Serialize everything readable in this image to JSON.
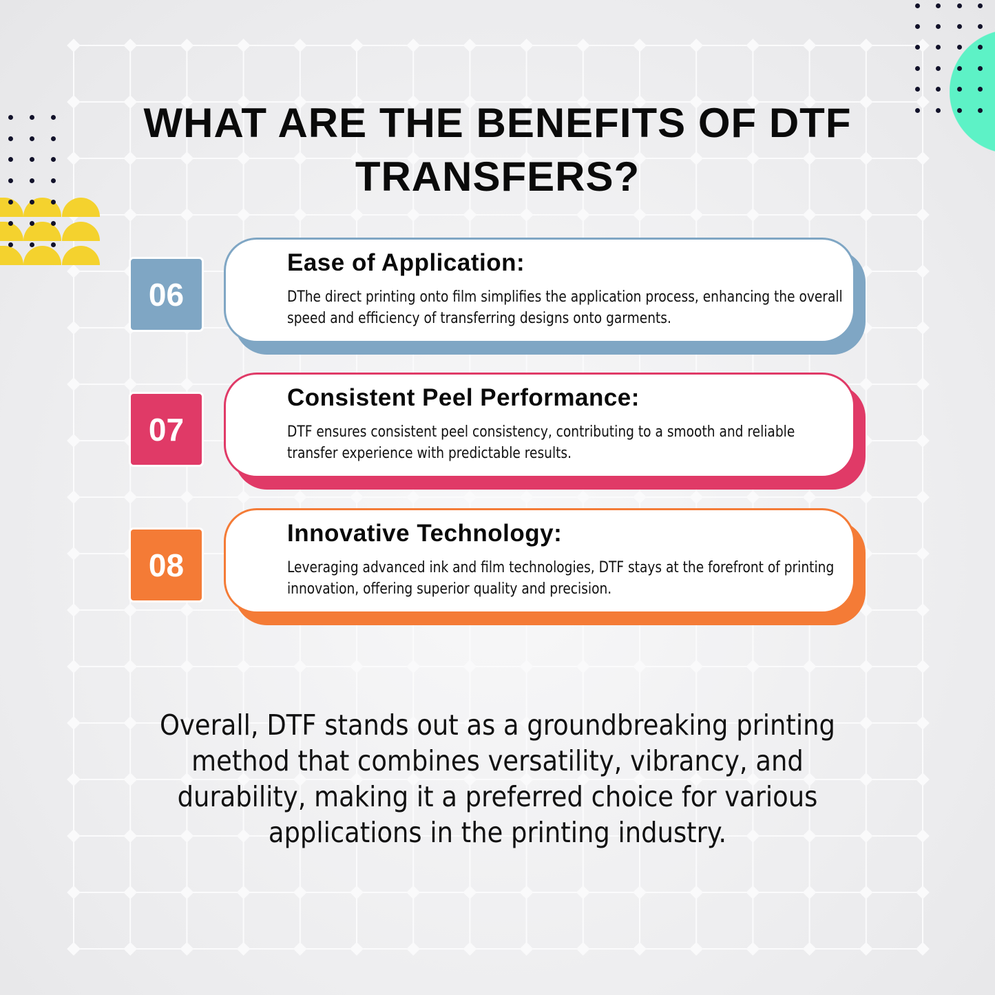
{
  "title": "WHAT ARE THE BENEFITS OF DTF TRANSFERS?",
  "benefits": [
    {
      "number": "06",
      "heading": "Ease of Application:",
      "text": "DThe direct printing onto film simplifies the application process, enhancing the overall speed and efficiency of transferring designs onto garments.",
      "color": "#7fa6c4"
    },
    {
      "number": "07",
      "heading": "Consistent Peel Performance:",
      "text": "DTF ensures consistent peel consistency, contributing to a smooth and reliable transfer experience with predictable results.",
      "color": "#e03a67"
    },
    {
      "number": "08",
      "heading": "Innovative Technology:",
      "text": "Leveraging advanced ink and film technologies, DTF stays at the forefront of printing innovation, offering superior quality and precision.",
      "color": "#f47b36"
    }
  ],
  "conclusion": "Overall, DTF stands out as a groundbreaking printing method that combines versatility, vibrancy, and durability, making it a preferred choice for various applications in the printing industry.",
  "decor": {
    "accent_green": "#5df2c6",
    "accent_yellow": "#f4d22e",
    "dot_color": "#12122a"
  }
}
